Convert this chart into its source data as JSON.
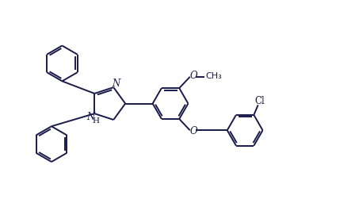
{
  "bg_color": "#ffffff",
  "line_color": "#1a1a4a",
  "line_width": 1.4,
  "font_size": 8.5,
  "figsize": [
    4.48,
    2.66
  ],
  "dpi": 100,
  "xlim": [
    0,
    10
  ],
  "ylim": [
    0,
    5.93
  ]
}
